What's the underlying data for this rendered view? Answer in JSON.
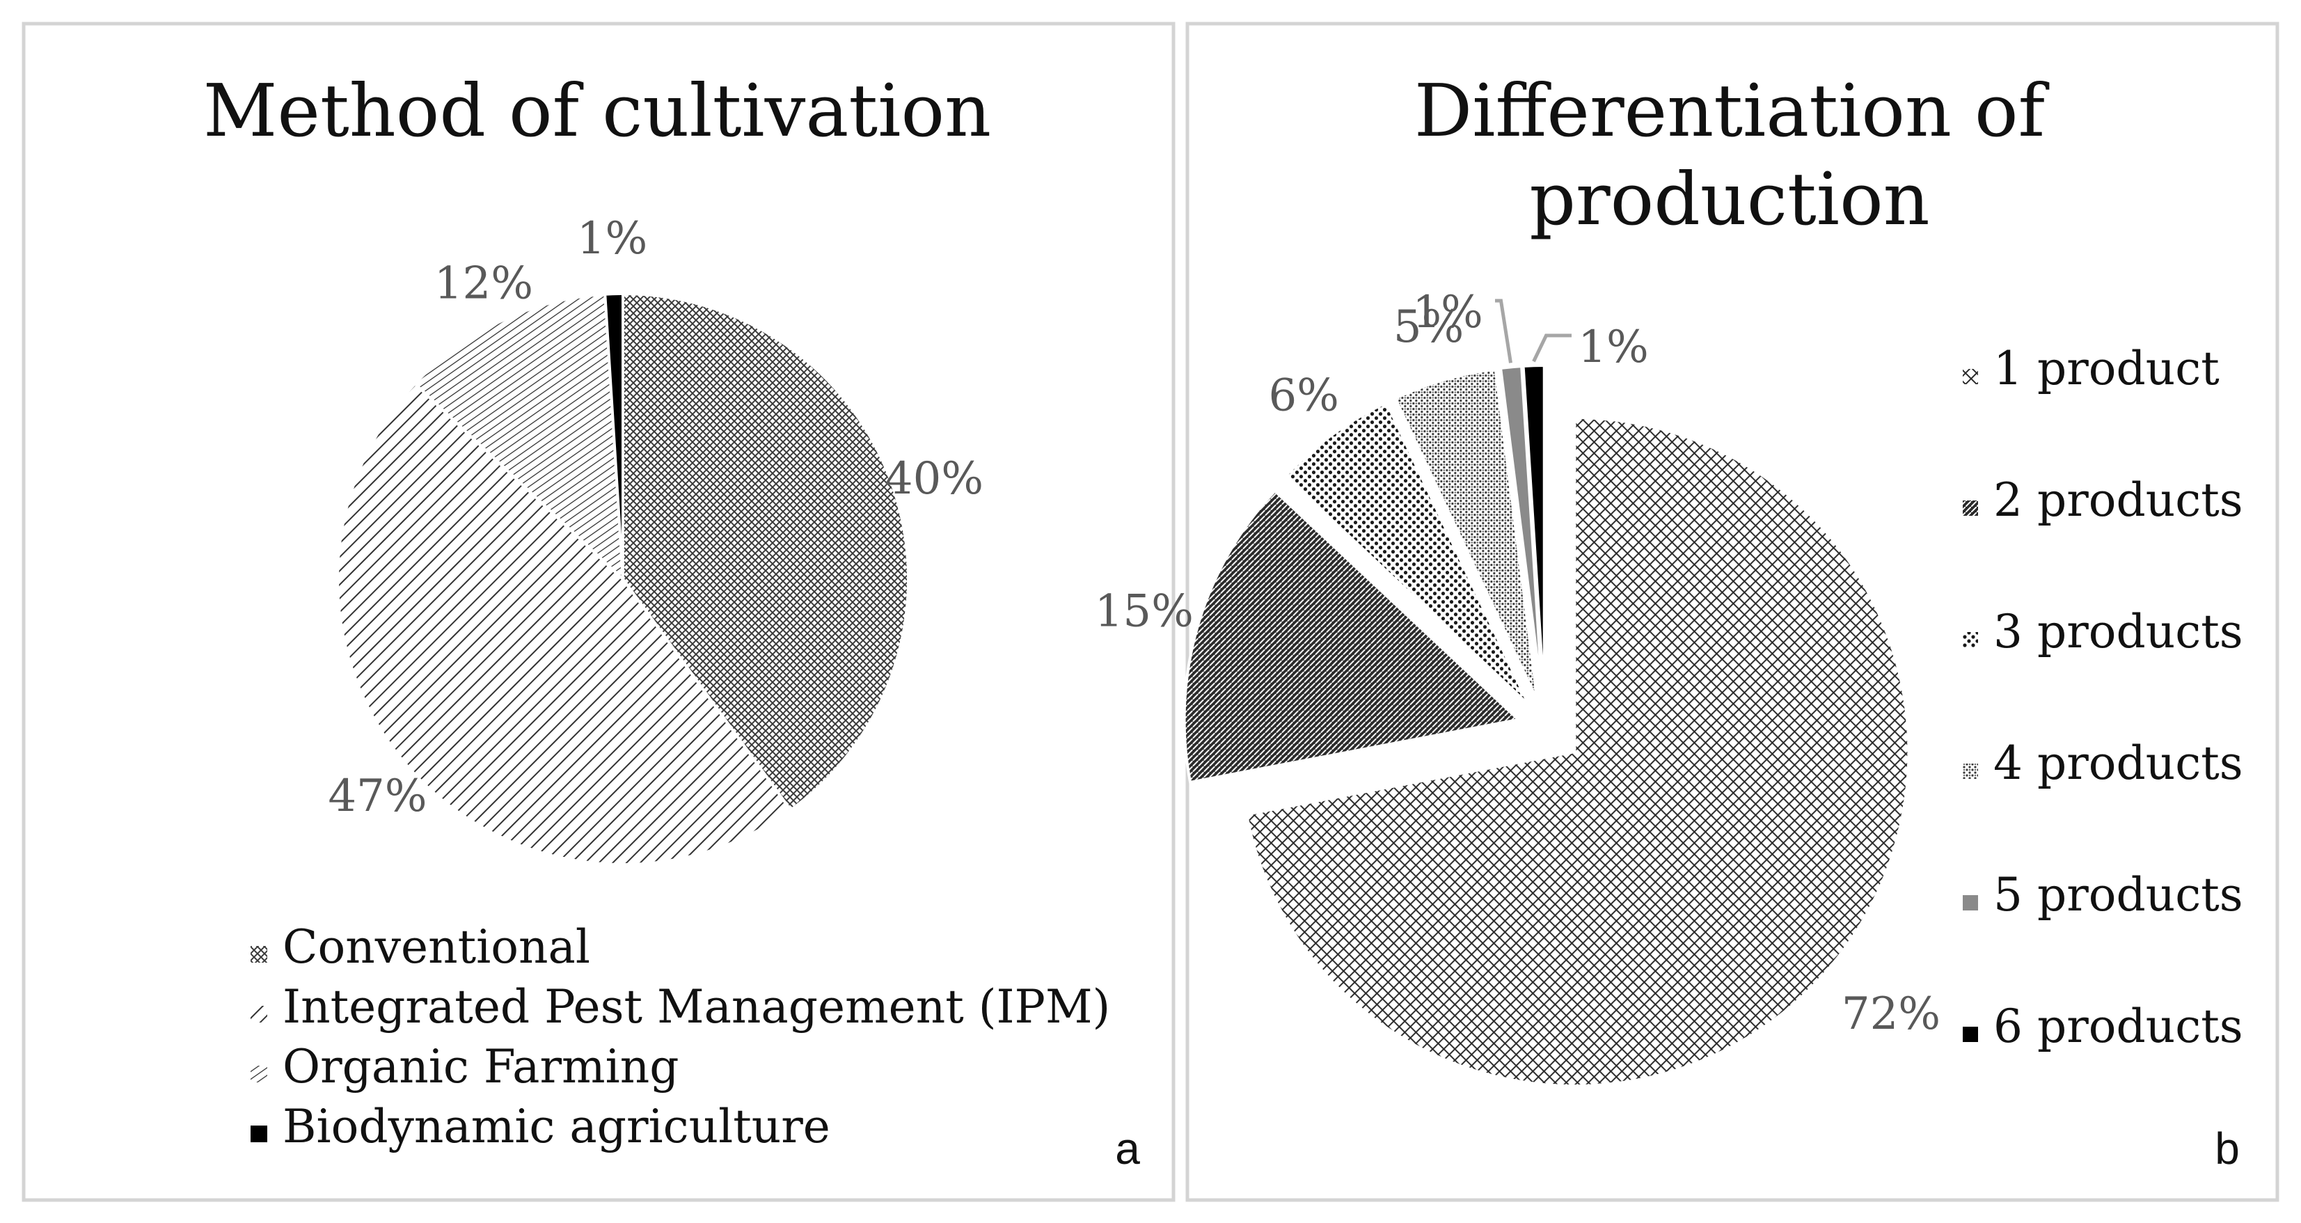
{
  "chart_data": [
    {
      "type": "pie",
      "panel": "a",
      "title": "Method of cultivation",
      "categories": [
        "Conventional",
        "Integrated Pest Management (IPM)",
        "Organic Farming",
        "Biodynamic agriculture"
      ],
      "values": [
        40,
        47,
        12,
        1
      ],
      "labels": [
        "40%",
        "47%",
        "12%",
        "1%"
      ],
      "patterns": [
        "crosshatch",
        "diagonal",
        "dense-horizontal",
        "solid-black"
      ],
      "legend_position": "bottom"
    },
    {
      "type": "pie",
      "panel": "b",
      "title": "Differentiation of production",
      "title_lines": [
        "Differentiation of",
        "production"
      ],
      "categories": [
        "1 product",
        "2 products",
        "3 products",
        "4 products",
        "5 products",
        "6 products"
      ],
      "values": [
        72,
        15,
        6,
        5,
        1,
        1
      ],
      "labels": [
        "72%",
        "15%",
        "6%",
        "5%",
        "1%",
        "1%"
      ],
      "patterns": [
        "crosshatch-diagonal",
        "dense-diagonal",
        "dots",
        "fine-dots",
        "solid-gray",
        "solid-black"
      ],
      "exploded": true,
      "legend_position": "right"
    }
  ],
  "colors": {
    "label_gray": "#595959",
    "pattern_ink": "#1a1a1a",
    "pattern_gray": "#8a8a8a",
    "solid_black": "#000000",
    "frame": "#d4d4d4"
  }
}
